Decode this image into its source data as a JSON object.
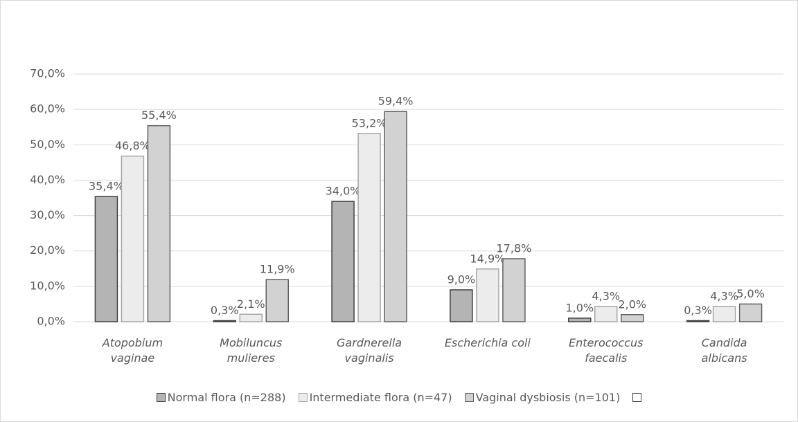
{
  "chart_data": {
    "type": "bar",
    "categories": [
      "Atopobium vaginae",
      "Mobiluncus mulieres",
      "Gardnerella vaginalis",
      "Escherichia coli",
      "Enterococcus faecalis",
      "Candida albicans"
    ],
    "series": [
      {
        "name": "Normal flora (n=288)",
        "color": "#b4b4b4",
        "values": [
          35.4,
          0.3,
          34.0,
          9.0,
          1.0,
          0.3
        ],
        "value_labels": [
          "35,4%",
          "0,3%",
          "34,0%",
          "9,0%",
          "1,0%",
          "0,3%"
        ]
      },
      {
        "name": "Intermediate flora (n=47)",
        "color": "#ececec",
        "values": [
          46.8,
          2.1,
          53.2,
          14.9,
          4.3,
          4.3
        ],
        "value_labels": [
          "46,8%",
          "2,1%",
          "53,2%",
          "14,9%",
          "4,3%",
          "4,3%"
        ]
      },
      {
        "name": "Vaginal dysbiosis (n=101)",
        "color": "#d2d2d2",
        "values": [
          55.4,
          11.9,
          59.4,
          17.8,
          2.0,
          5.0
        ],
        "value_labels": [
          "55,4%",
          "11,9%",
          "59,4%",
          "17,8%",
          "2,0%",
          "5,0%"
        ]
      }
    ],
    "ylim": [
      0,
      70
    ],
    "yticks": [
      {
        "value": 0,
        "label": "0,0%"
      },
      {
        "value": 10,
        "label": "10,0%"
      },
      {
        "value": 20,
        "label": "20,0%"
      },
      {
        "value": 30,
        "label": "30,0%"
      },
      {
        "value": 40,
        "label": "40,0%"
      },
      {
        "value": 50,
        "label": "50,0%"
      },
      {
        "value": 60,
        "label": "60,0%"
      },
      {
        "value": 70,
        "label": "70,0%"
      }
    ],
    "grid": true
  }
}
